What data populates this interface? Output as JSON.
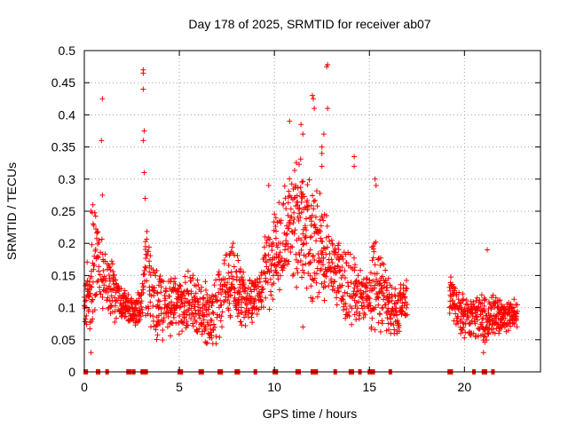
{
  "chart_data": {
    "type": "scatter",
    "title": "Day 178 of 2025, SRMTID for receiver ab07",
    "xlabel": "GPS time / hours",
    "ylabel": "SRMTID / TECUs",
    "xlim": [
      0,
      24
    ],
    "ylim": [
      0,
      0.5
    ],
    "xticks": [
      "0",
      "5",
      "10",
      "15",
      "20"
    ],
    "yticks": [
      "0",
      "0.05",
      "0.1",
      "0.15",
      "0.2",
      "0.25",
      "0.3",
      "0.35",
      "0.4",
      "0.45",
      "0.5"
    ],
    "grid": true,
    "marker": "plus",
    "color": "#ff0000",
    "envelope": [
      {
        "t": 0.0,
        "lo": 0.08,
        "hi": 0.12
      },
      {
        "t": 0.3,
        "lo": 0.03,
        "hi": 0.21
      },
      {
        "t": 0.5,
        "lo": 0.1,
        "hi": 0.26
      },
      {
        "t": 0.9,
        "lo": 0.1,
        "hi": 0.21
      },
      {
        "t": 1.5,
        "lo": 0.08,
        "hi": 0.17
      },
      {
        "t": 2.0,
        "lo": 0.08,
        "hi": 0.13
      },
      {
        "t": 2.5,
        "lo": 0.07,
        "hi": 0.12
      },
      {
        "t": 3.0,
        "lo": 0.08,
        "hi": 0.12
      },
      {
        "t": 3.3,
        "lo": 0.09,
        "hi": 0.24
      },
      {
        "t": 3.6,
        "lo": 0.05,
        "hi": 0.16
      },
      {
        "t": 4.5,
        "lo": 0.06,
        "hi": 0.15
      },
      {
        "t": 5.5,
        "lo": 0.06,
        "hi": 0.15
      },
      {
        "t": 6.5,
        "lo": 0.04,
        "hi": 0.13
      },
      {
        "t": 7.3,
        "lo": 0.06,
        "hi": 0.17
      },
      {
        "t": 7.8,
        "lo": 0.08,
        "hi": 0.22
      },
      {
        "t": 8.5,
        "lo": 0.07,
        "hi": 0.14
      },
      {
        "t": 9.2,
        "lo": 0.08,
        "hi": 0.16
      },
      {
        "t": 9.6,
        "lo": 0.1,
        "hi": 0.22
      },
      {
        "t": 10.0,
        "lo": 0.12,
        "hi": 0.24
      },
      {
        "t": 10.6,
        "lo": 0.14,
        "hi": 0.3
      },
      {
        "t": 11.2,
        "lo": 0.14,
        "hi": 0.33
      },
      {
        "t": 11.8,
        "lo": 0.12,
        "hi": 0.32
      },
      {
        "t": 12.4,
        "lo": 0.11,
        "hi": 0.28
      },
      {
        "t": 13.0,
        "lo": 0.1,
        "hi": 0.22
      },
      {
        "t": 13.6,
        "lo": 0.09,
        "hi": 0.2
      },
      {
        "t": 14.2,
        "lo": 0.08,
        "hi": 0.18
      },
      {
        "t": 14.8,
        "lo": 0.07,
        "hi": 0.15
      },
      {
        "t": 15.2,
        "lo": 0.07,
        "hi": 0.22
      },
      {
        "t": 15.8,
        "lo": 0.06,
        "hi": 0.16
      },
      {
        "t": 16.5,
        "lo": 0.06,
        "hi": 0.13
      },
      {
        "t": 16.9,
        "lo": 0.08,
        "hi": 0.14
      },
      {
        "t": 19.3,
        "lo": 0.09,
        "hi": 0.15
      },
      {
        "t": 19.8,
        "lo": 0.05,
        "hi": 0.12
      },
      {
        "t": 20.5,
        "lo": 0.05,
        "hi": 0.12
      },
      {
        "t": 21.2,
        "lo": 0.05,
        "hi": 0.13
      },
      {
        "t": 21.8,
        "lo": 0.06,
        "hi": 0.11
      },
      {
        "t": 22.8,
        "lo": 0.07,
        "hi": 0.11
      }
    ],
    "gaps": [
      [
        17.0,
        19.2
      ],
      [
        22.9,
        24.0
      ]
    ],
    "outliers": [
      {
        "x": 0.35,
        "y": 0.25
      },
      {
        "x": 0.45,
        "y": 0.26
      },
      {
        "x": 0.95,
        "y": 0.425
      },
      {
        "x": 0.9,
        "y": 0.36
      },
      {
        "x": 0.95,
        "y": 0.275
      },
      {
        "x": 3.1,
        "y": 0.47
      },
      {
        "x": 3.1,
        "y": 0.465
      },
      {
        "x": 3.1,
        "y": 0.44
      },
      {
        "x": 3.15,
        "y": 0.375
      },
      {
        "x": 3.1,
        "y": 0.36
      },
      {
        "x": 3.15,
        "y": 0.31
      },
      {
        "x": 3.2,
        "y": 0.27
      },
      {
        "x": 10.8,
        "y": 0.39
      },
      {
        "x": 11.4,
        "y": 0.385
      },
      {
        "x": 11.5,
        "y": 0.37
      },
      {
        "x": 12.0,
        "y": 0.43
      },
      {
        "x": 12.05,
        "y": 0.425
      },
      {
        "x": 12.1,
        "y": 0.41
      },
      {
        "x": 12.75,
        "y": 0.475
      },
      {
        "x": 12.8,
        "y": 0.478
      },
      {
        "x": 12.8,
        "y": 0.41
      },
      {
        "x": 12.6,
        "y": 0.37
      },
      {
        "x": 12.5,
        "y": 0.35
      },
      {
        "x": 12.5,
        "y": 0.34
      },
      {
        "x": 12.5,
        "y": 0.32
      },
      {
        "x": 14.2,
        "y": 0.335
      },
      {
        "x": 14.2,
        "y": 0.32
      },
      {
        "x": 15.3,
        "y": 0.3
      },
      {
        "x": 15.35,
        "y": 0.29
      },
      {
        "x": 9.7,
        "y": 0.29
      },
      {
        "x": 21.2,
        "y": 0.19
      },
      {
        "x": 11.5,
        "y": 0.07
      },
      {
        "x": 0.35,
        "y": 0.03
      },
      {
        "x": 21.0,
        "y": 0.03
      }
    ],
    "zero_markers": [
      0.05,
      0.1,
      0.7,
      0.75,
      1.2,
      2.3,
      2.4,
      2.6,
      3.05,
      3.1,
      3.2,
      3.25,
      5.0,
      5.1,
      6.1,
      6.2,
      7.1,
      7.2,
      8.0,
      8.1,
      9.0,
      10.0,
      10.1,
      11.2,
      11.3,
      12.0,
      12.1,
      12.2,
      13.2,
      14.0,
      14.1,
      14.5,
      15.0,
      15.1,
      15.2,
      16.1,
      19.2,
      19.3,
      20.5,
      21.0,
      21.1,
      21.5
    ]
  }
}
